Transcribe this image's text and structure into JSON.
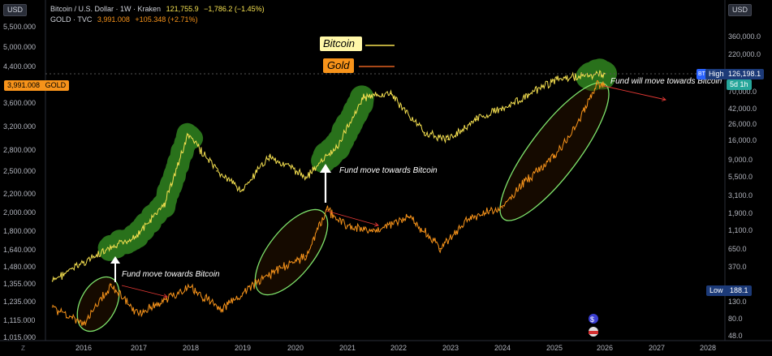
{
  "left_axis": {
    "unit": "USD",
    "ticks": [
      "5,500.000",
      "5,000.000",
      "4,400.000",
      "3,600.000",
      "3,200.000",
      "2,800.000",
      "2,500.000",
      "2,200.000",
      "2,000.000",
      "1,800.000",
      "1,640.000",
      "1,480.000",
      "1,355.000",
      "1,235.000",
      "1,115.000",
      "1,015.000"
    ],
    "current_label": "3,991.008",
    "current_tag": "GOLD"
  },
  "right_axis": {
    "unit": "USD",
    "ticks": [
      "360,000.0",
      "220,000.0",
      "70,000.0",
      "42,000.0",
      "26,000.0",
      "16,000.0",
      "9,000.0",
      "5,500.0",
      "3,100.0",
      "1,900.0",
      "1,100.0",
      "650.0",
      "370.0",
      "130.0",
      "80.0",
      "48.0"
    ],
    "high_label": "High",
    "high_value": "126,198.1",
    "high_badge": "BT",
    "countdown": "5d 1h",
    "low_label": "Low",
    "low_value": "188.1"
  },
  "x_axis": {
    "ticks": [
      "2016",
      "2017",
      "2018",
      "2019",
      "2020",
      "2021",
      "2022",
      "2023",
      "2024",
      "2025",
      "2026",
      "2027",
      "2028"
    ]
  },
  "legend": {
    "btc": {
      "title": "Bitcoin / U.S. Dollar · 1W · Kraken",
      "value": "121,755.9",
      "change": "−1,786.2 (−1.45%)"
    },
    "gold": {
      "title": "GOLD · TVC",
      "value": "3,991.008",
      "change": "+105.348 (+2.71%)"
    }
  },
  "annotations": {
    "bitcoin_tag": "Bitcoin",
    "gold_tag": "Gold",
    "fund1": "Fund move towards Bitcoin",
    "fund2": "Fund move towards Bitcoin",
    "fund3": "Fund will move towards Bitcoin"
  },
  "corner_btn": "Z",
  "colors": {
    "btc": "#f5e050",
    "gold": "#f7931a",
    "highlight_green": "#2e7d1e",
    "ellipse": "#7ee36b",
    "arrow_red": "#e53935"
  },
  "chart_data": {
    "type": "line",
    "x_label": "",
    "series": [
      {
        "name": "Bitcoin / U.S. Dollar",
        "axis": "right",
        "x": [
          2015.4,
          2016.0,
          2016.5,
          2017.0,
          2017.5,
          2017.95,
          2018.5,
          2019.0,
          2019.5,
          2020.2,
          2020.8,
          2021.3,
          2021.85,
          2022.5,
          2022.95,
          2023.5,
          2024.0,
          2024.5,
          2025.0,
          2025.5,
          2026.0
        ],
        "y": [
          240,
          430,
          650,
          1000,
          2500,
          19000,
          6500,
          3600,
          10000,
          5500,
          13000,
          58000,
          66000,
          20000,
          16500,
          30000,
          43000,
          62000,
          100000,
          110000,
          121755.9
        ]
      },
      {
        "name": "GOLD",
        "axis": "left",
        "x": [
          2015.4,
          2016.0,
          2016.5,
          2017.0,
          2017.5,
          2018.0,
          2018.6,
          2019.0,
          2019.5,
          2020.2,
          2020.6,
          2021.0,
          2021.5,
          2022.2,
          2022.8,
          2023.4,
          2024.0,
          2024.5,
          2025.0,
          2025.5,
          2025.85,
          2026.0
        ],
        "y": [
          1200,
          1090,
          1350,
          1150,
          1250,
          1330,
          1180,
          1290,
          1420,
          1580,
          2030,
          1850,
          1800,
          1950,
          1650,
          1950,
          2050,
          2400,
          2700,
          3300,
          3991.008,
          3991.008
        ]
      }
    ],
    "left_axis_ticks": [
      5500,
      5000,
      4400,
      3600,
      3200,
      2800,
      2500,
      2200,
      2000,
      1800,
      1640,
      1480,
      1355,
      1235,
      1115,
      1015
    ],
    "right_axis_ticks": [
      360000,
      220000,
      70000,
      42000,
      26000,
      16000,
      9000,
      5500,
      3100,
      1900,
      1100,
      650,
      370,
      130,
      80,
      48
    ],
    "x_range": [
      2015.4,
      2028.0
    ],
    "grid": false,
    "log_scale": true
  }
}
